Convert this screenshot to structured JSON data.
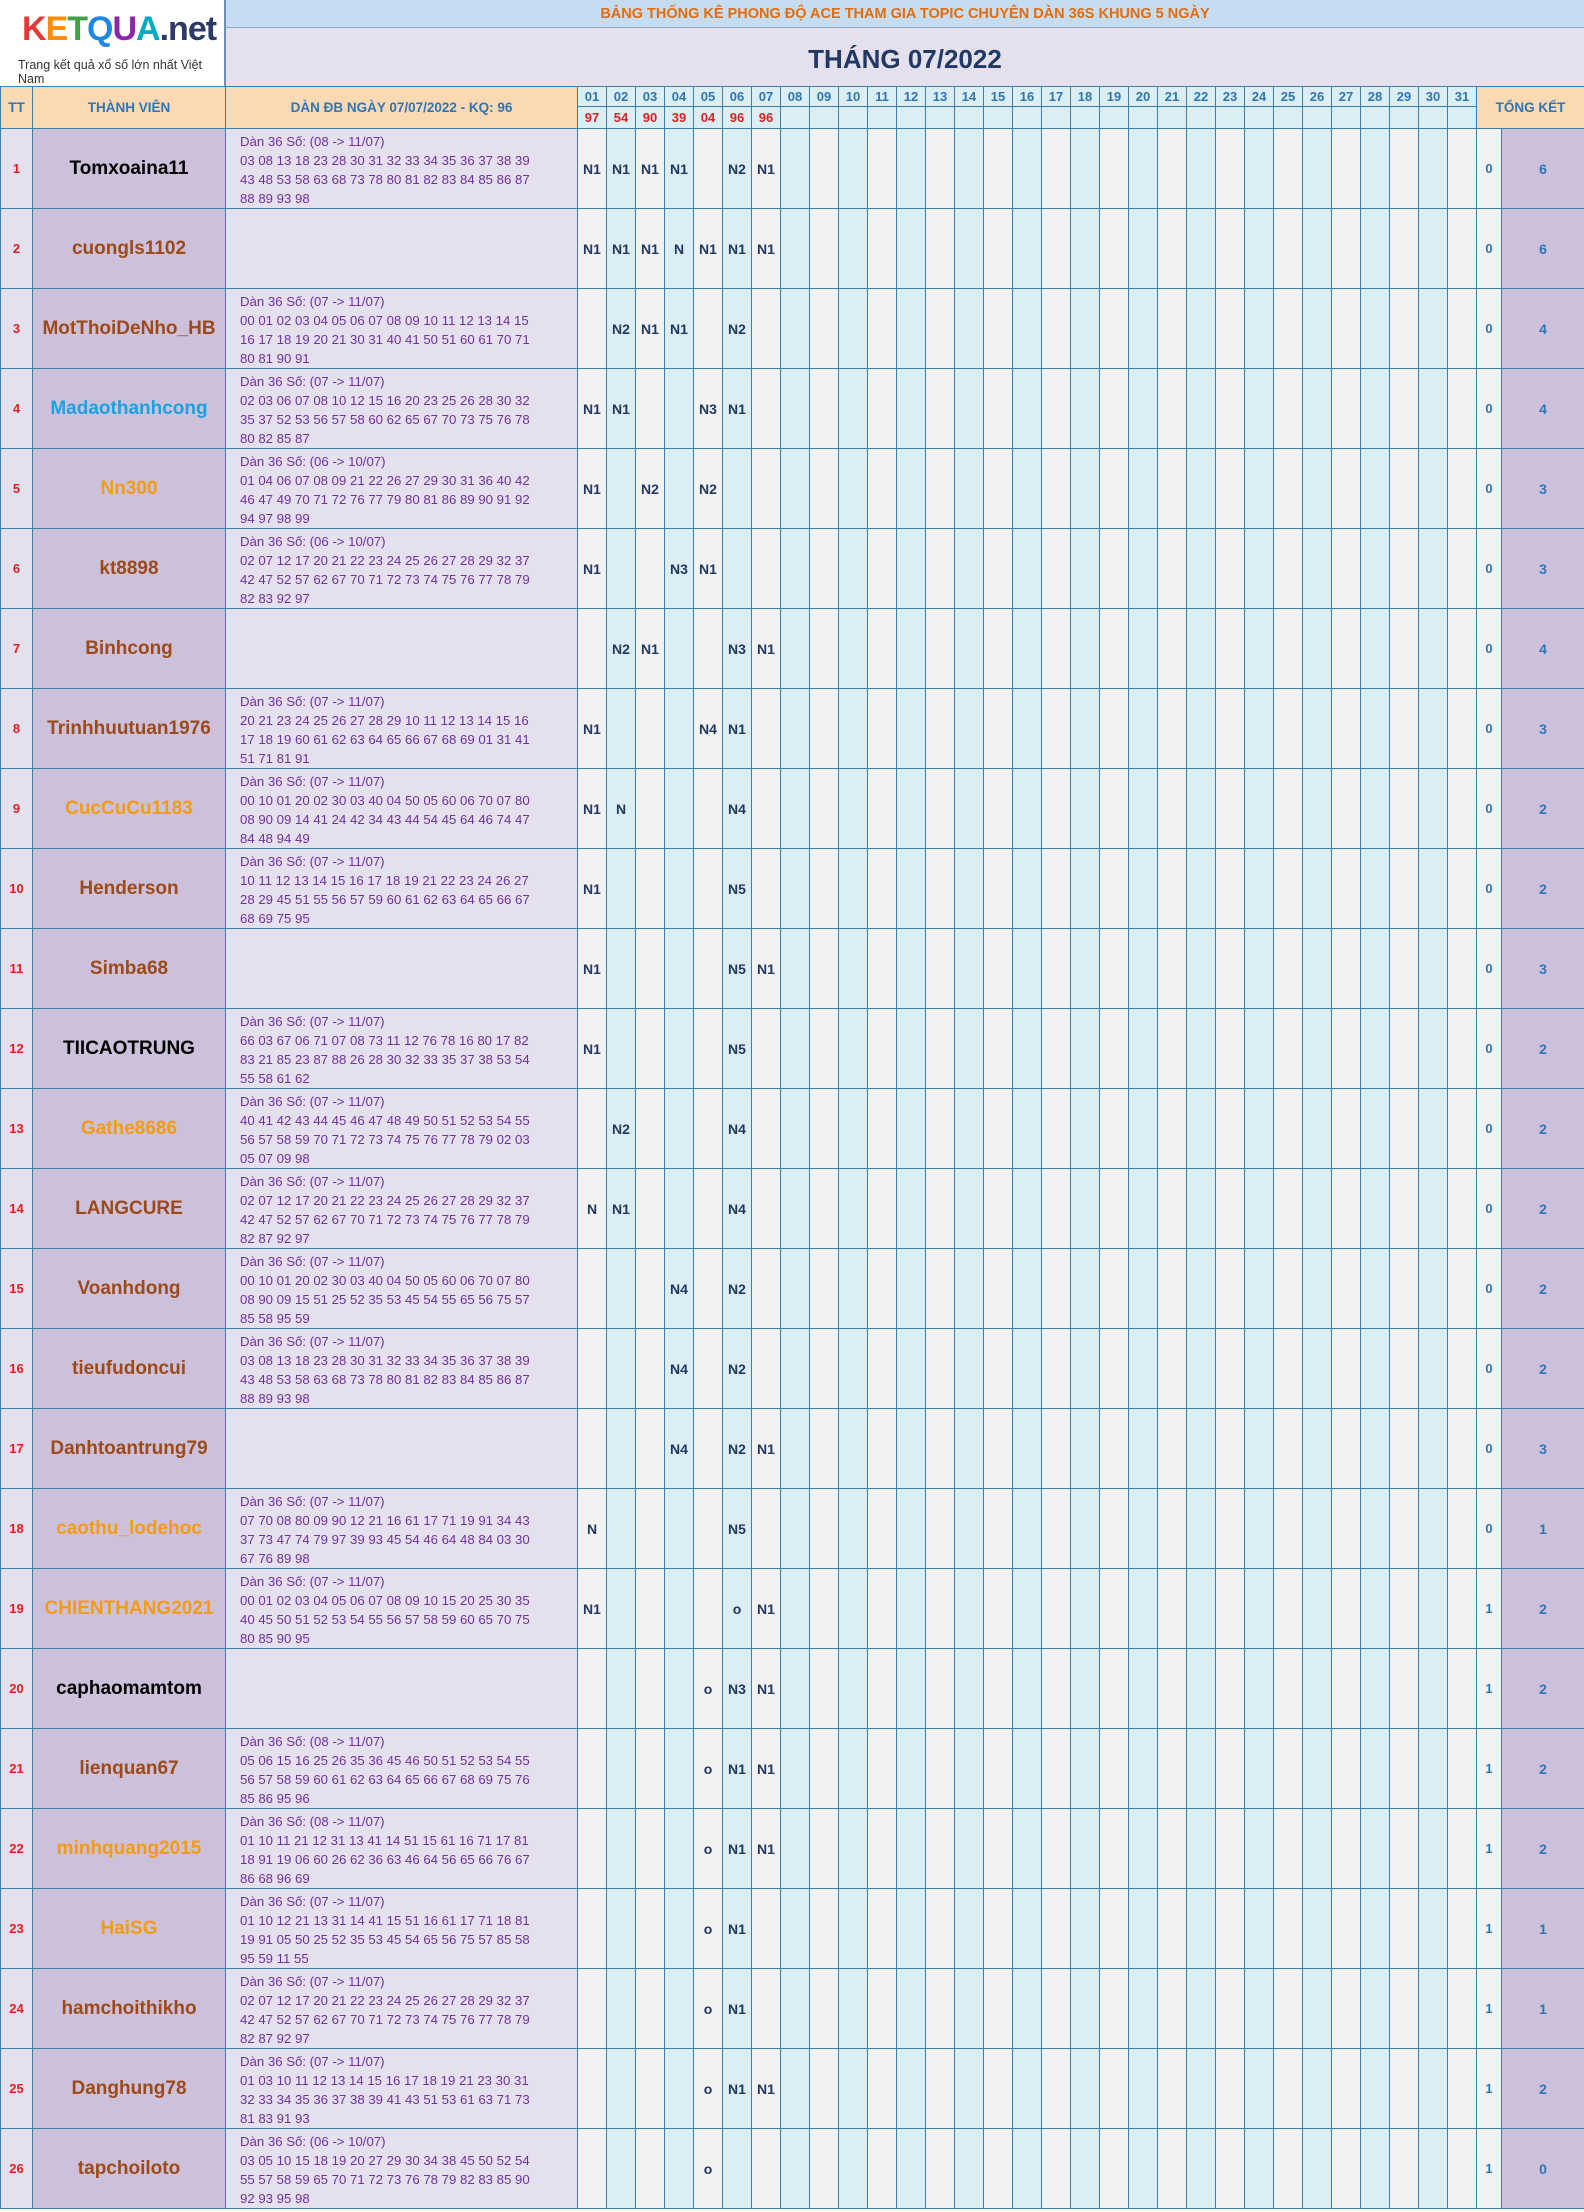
{
  "logo": {
    "brand_letters": [
      "K",
      "E",
      "T",
      "Q",
      "U",
      "A"
    ],
    "brand_colors": [
      "#e53935",
      "#fb8c00",
      "#43a047",
      "#1e88e5",
      "#8e24aa",
      "#00acc1"
    ],
    "brand_suffix": ".net",
    "tagline": "Trang kết quả xổ số lớn nhất Việt Nam"
  },
  "banner": "BẢNG THỐNG KÊ PHONG ĐỘ ACE THAM GIA TOPIC CHUYÊN DÀN 36S KHUNG 5 NGÀY",
  "month_title": "THÁNG 07/2022",
  "headers": {
    "tt": "TT",
    "member": "THÀNH VIÊN",
    "dan": "DÀN ĐB NGÀY 07/07/2022 - KQ: 96",
    "total": "TỔNG KẾT"
  },
  "days": [
    "01",
    "02",
    "03",
    "04",
    "05",
    "06",
    "07",
    "08",
    "09",
    "10",
    "11",
    "12",
    "13",
    "14",
    "15",
    "16",
    "17",
    "18",
    "19",
    "20",
    "21",
    "22",
    "23",
    "24",
    "25",
    "26",
    "27",
    "28",
    "29",
    "30",
    "31"
  ],
  "results": [
    "97",
    "54",
    "90",
    "39",
    "04",
    "96",
    "96",
    "",
    "",
    "",
    "",
    "",
    "",
    "",
    "",
    "",
    "",
    "",
    "",
    "",
    "",
    "",
    "",
    "",
    "",
    "",
    "",
    "",
    "",
    "",
    ""
  ],
  "members": [
    {
      "tt": "1",
      "name": "Tomxoaina11",
      "color": "#000000",
      "dan": [
        "Dàn 36 Số: (08 -> 11/07)",
        "03 08 13 18 23 28 30 31 32 33 34 35 36 37 38 39",
        "43 48 53 58 63 68 73 78 80 81 82 83 84 85 86 87",
        "88 89 93 98"
      ],
      "marks": [
        "N1",
        "N1",
        "N1",
        "N1",
        "",
        "N2",
        "N1"
      ],
      "hits": "0",
      "total": "6"
    },
    {
      "tt": "2",
      "name": "cuongls1102",
      "color": "#9c4a1a",
      "dan": [],
      "marks": [
        "N1",
        "N1",
        "N1",
        "N",
        "N1",
        "N1",
        "N1"
      ],
      "hits": "0",
      "total": "6"
    },
    {
      "tt": "3",
      "name": "MotThoiDeNho_HB",
      "color": "#9c4a1a",
      "dan": [
        "Dàn 36 Số: (07 -> 11/07)",
        "00 01 02 03 04 05 06 07 08 09 10 11 12 13 14 15",
        "16 17 18 19 20 21 30 31 40 41 50 51 60 61 70 71",
        "80 81 90 91"
      ],
      "marks": [
        "",
        "N2",
        "N1",
        "N1",
        "",
        "N2",
        ""
      ],
      "hits": "0",
      "total": "4"
    },
    {
      "tt": "4",
      "name": "Madaothanhcong",
      "color": "#1aa3e0",
      "dan": [
        "Dàn 36 Số: (07 -> 11/07)",
        "02 03 06 07 08 10 12 15 16 20 23 25 26 28 30 32",
        "35 37 52 53 56 57 58 60 62 65 67 70 73 75 76 78",
        "80 82 85 87"
      ],
      "marks": [
        "N1",
        "N1",
        "",
        "",
        "N3",
        "N1",
        ""
      ],
      "hits": "0",
      "total": "4"
    },
    {
      "tt": "5",
      "name": "Nn300",
      "color": "#f39c12",
      "dan": [
        "Dàn 36 Số: (06 -> 10/07)",
        "01 04 06 07 08 09 21 22 26 27 29 30 31 36 40 42",
        "46 47 49 70 71 72 76 77 79 80 81 86 89 90 91 92",
        "94 97 98 99"
      ],
      "marks": [
        "N1",
        "",
        "N2",
        "",
        "N2",
        "",
        ""
      ],
      "hits": "0",
      "total": "3"
    },
    {
      "tt": "6",
      "name": "kt8898",
      "color": "#9c4a1a",
      "dan": [
        "Dàn 36 Số: (06 -> 10/07)",
        "02 07 12 17 20 21 22 23 24 25 26 27 28 29 32 37",
        "42 47 52 57 62 67 70 71 72 73 74 75 76 77 78 79",
        "82 83 92 97"
      ],
      "marks": [
        "N1",
        "",
        "",
        "N3",
        "N1",
        "",
        ""
      ],
      "hits": "0",
      "total": "3"
    },
    {
      "tt": "7",
      "name": "Binhcong",
      "color": "#9c4a1a",
      "dan": [],
      "marks": [
        "",
        "N2",
        "N1",
        "",
        "",
        "N3",
        "N1"
      ],
      "hits": "0",
      "total": "4"
    },
    {
      "tt": "8",
      "name": "Trinhhuutuan1976",
      "color": "#9c4a1a",
      "dan": [
        "Dàn 36 Số: (07 -> 11/07)",
        "20 21 23 24 25 26 27 28 29 10 11 12 13 14 15 16",
        "17 18 19 60 61 62 63 64 65 66 67 68 69 01 31 41",
        "51 71 81 91"
      ],
      "marks": [
        "N1",
        "",
        "",
        "",
        "N4",
        "N1",
        ""
      ],
      "hits": "0",
      "total": "3"
    },
    {
      "tt": "9",
      "name": "CucCuCu1183",
      "color": "#f39c12",
      "dan": [
        "Dàn 36 Số: (07 -> 11/07)",
        "00 10 01 20 02 30 03 40 04 50 05 60 06 70 07 80",
        "08 90 09 14 41 24 42 34 43 44 54 45 64 46 74 47",
        "84 48 94 49"
      ],
      "marks": [
        "N1",
        "N",
        "",
        "",
        "",
        "N4",
        ""
      ],
      "hits": "0",
      "total": "2"
    },
    {
      "tt": "10",
      "name": "Henderson",
      "color": "#9c4a1a",
      "dan": [
        "Dàn 36 Số: (07 -> 11/07)",
        "10 11 12 13 14 15 16 17 18 19 21 22 23 24 26 27",
        "28 29 45 51 55 56 57 59 60 61 62 63 64 65 66 67",
        "68 69 75 95"
      ],
      "marks": [
        "N1",
        "",
        "",
        "",
        "",
        "N5",
        ""
      ],
      "hits": "0",
      "total": "2"
    },
    {
      "tt": "11",
      "name": "Simba68",
      "color": "#9c4a1a",
      "dan": [],
      "marks": [
        "N1",
        "",
        "",
        "",
        "",
        "N5",
        "N1"
      ],
      "hits": "0",
      "total": "3"
    },
    {
      "tt": "12",
      "name": "TIICAOTRUNG",
      "color": "#000000",
      "dan": [
        "Dàn 36 Số: (07 -> 11/07)",
        "66 03 67 06 71 07 08 73 11 12 76 78 16 80 17 82",
        "83 21 85 23 87 88 26 28 30 32 33 35 37 38 53 54",
        "55 58 61 62"
      ],
      "marks": [
        "N1",
        "",
        "",
        "",
        "",
        "N5",
        ""
      ],
      "hits": "0",
      "total": "2"
    },
    {
      "tt": "13",
      "name": "Gathe8686",
      "color": "#f39c12",
      "dan": [
        "Dàn 36 Số: (07 -> 11/07)",
        "40 41 42 43 44 45 46 47 48 49 50 51 52 53 54 55",
        "56 57 58 59 70 71 72 73 74 75 76 77 78 79 02 03",
        "05 07 09 98"
      ],
      "marks": [
        "",
        "N2",
        "",
        "",
        "",
        "N4",
        ""
      ],
      "hits": "0",
      "total": "2"
    },
    {
      "tt": "14",
      "name": "LANGCURE",
      "color": "#9c4a1a",
      "dan": [
        "Dàn 36 Số: (07 -> 11/07)",
        "02 07 12 17 20 21 22 23 24 25 26 27 28 29 32 37",
        "42 47 52 57 62 67 70 71 72 73 74 75 76 77 78 79",
        "82 87 92 97"
      ],
      "marks": [
        "N",
        "N1",
        "",
        "",
        "",
        "N4",
        ""
      ],
      "hits": "0",
      "total": "2"
    },
    {
      "tt": "15",
      "name": "Voanhdong",
      "color": "#9c4a1a",
      "dan": [
        "Dàn 36 Số: (07 -> 11/07)",
        "00 10 01 20 02 30 03 40 04 50 05 60 06 70 07 80",
        "08 90 09 15 51 25 52 35 53 45 54 55 65 56 75 57",
        "85 58 95 59"
      ],
      "marks": [
        "",
        "",
        "",
        "N4",
        "",
        "N2",
        ""
      ],
      "hits": "0",
      "total": "2"
    },
    {
      "tt": "16",
      "name": "tieufudoncui",
      "color": "#9c4a1a",
      "dan": [
        "Dàn 36 Số: (07 -> 11/07)",
        "03 08 13 18 23 28 30 31 32 33 34 35 36 37 38 39",
        "43 48 53 58 63 68 73 78 80 81 82 83 84 85 86 87",
        "88 89 93 98"
      ],
      "marks": [
        "",
        "",
        "",
        "N4",
        "",
        "N2",
        ""
      ],
      "hits": "0",
      "total": "2"
    },
    {
      "tt": "17",
      "name": "Danhtoantrung79",
      "color": "#9c4a1a",
      "dan": [],
      "marks": [
        "",
        "",
        "",
        "N4",
        "",
        "N2",
        "N1"
      ],
      "hits": "0",
      "total": "3"
    },
    {
      "tt": "18",
      "name": "caothu_lodehoc",
      "color": "#f39c12",
      "dan": [
        "Dàn 36 Số: (07 -> 11/07)",
        "07 70 08 80 09 90 12 21 16 61 17 71 19 91 34 43",
        "37 73 47 74 79 97 39 93 45 54 46 64 48 84 03 30",
        "67 76 89 98"
      ],
      "marks": [
        "N",
        "",
        "",
        "",
        "",
        "N5",
        ""
      ],
      "hits": "0",
      "total": "1"
    },
    {
      "tt": "19",
      "name": "CHIENTHANG2021",
      "color": "#f39c12",
      "dan": [
        "Dàn 36 Số: (07 -> 11/07)",
        "00 01 02 03 04 05 06 07 08 09 10 15 20 25 30 35",
        "40 45 50 51 52 53 54 55 56 57 58 59 60 65 70 75",
        "80 85 90 95"
      ],
      "marks": [
        "N1",
        "",
        "",
        "",
        "",
        "o",
        "N1"
      ],
      "hits": "1",
      "total": "2"
    },
    {
      "tt": "20",
      "name": "caphaomamtom",
      "color": "#000000",
      "dan": [],
      "marks": [
        "",
        "",
        "",
        "",
        "o",
        "N3",
        "N1"
      ],
      "hits": "1",
      "total": "2"
    },
    {
      "tt": "21",
      "name": "lienquan67",
      "color": "#9c4a1a",
      "dan": [
        "Dàn 36 Số: (08 -> 11/07)",
        "05 06 15 16 25 26 35 36 45 46 50 51 52 53 54 55",
        "56 57 58 59 60 61 62 63 64 65 66 67 68 69 75 76",
        "85 86 95 96"
      ],
      "marks": [
        "",
        "",
        "",
        "",
        "o",
        "N1",
        "N1"
      ],
      "hits": "1",
      "total": "2"
    },
    {
      "tt": "22",
      "name": "minhquang2015",
      "color": "#f39c12",
      "dan": [
        "Dàn 36 Số: (08 -> 11/07)",
        "01 10 11 21 12 31 13 41 14 51 15 61 16 71 17 81",
        "18 91 19 06 60 26 62 36 63 46 64 56 65 66 76 67",
        "86 68 96 69"
      ],
      "marks": [
        "",
        "",
        "",
        "",
        "o",
        "N1",
        "N1"
      ],
      "hits": "1",
      "total": "2"
    },
    {
      "tt": "23",
      "name": "HaiSG",
      "color": "#f39c12",
      "dan": [
        "Dàn 36 Số: (07 -> 11/07)",
        "01 10 12 21 13 31 14 41 15 51 16 61 17 71 18 81",
        "19 91 05 50 25 52 35 53 45 54 65 56 75 57 85 58",
        "95 59 11 55"
      ],
      "marks": [
        "",
        "",
        "",
        "",
        "o",
        "N1",
        ""
      ],
      "hits": "1",
      "total": "1"
    },
    {
      "tt": "24",
      "name": "hamchoithikho",
      "color": "#9c4a1a",
      "dan": [
        "Dàn 36 Số: (07 -> 11/07)",
        "02 07 12 17 20 21 22 23 24 25 26 27 28 29 32 37",
        "42 47 52 57 62 67 70 71 72 73 74 75 76 77 78 79",
        "82 87 92 97"
      ],
      "marks": [
        "",
        "",
        "",
        "",
        "o",
        "N1",
        ""
      ],
      "hits": "1",
      "total": "1"
    },
    {
      "tt": "25",
      "name": "Danghung78",
      "color": "#9c4a1a",
      "dan": [
        "Dàn 36 Số: (07 -> 11/07)",
        "01 03 10 11 12 13 14 15 16 17 18 19 21 23 30 31",
        "32 33 34 35 36 37 38 39 41 43 51 53 61 63 71 73",
        "81 83 91 93"
      ],
      "marks": [
        "",
        "",
        "",
        "",
        "o",
        "N1",
        "N1"
      ],
      "hits": "1",
      "total": "2"
    },
    {
      "tt": "26",
      "name": "tapchoiloto",
      "color": "#9c4a1a",
      "dan": [
        "Dàn 36 Số: (06 -> 10/07)",
        "03 05 10 15 18 19 20 27 29 30 34 38 45 50 52 54",
        "55 57 58 59 65 70 71 72 73 76 78 79 82 83 85 90",
        "92 93 95 98"
      ],
      "marks": [
        "",
        "",
        "",
        "",
        "o",
        "",
        ""
      ],
      "hits": "1",
      "total": "0"
    }
  ]
}
